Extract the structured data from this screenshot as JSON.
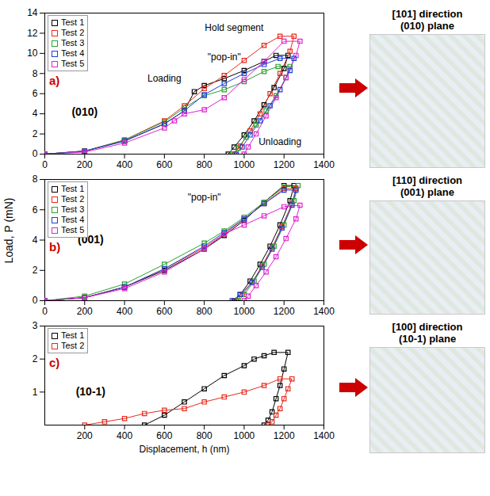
{
  "figure": {
    "y_label": "Load, P (mN)"
  },
  "chart_data": [
    {
      "type": "line",
      "panel": "a)",
      "side_caption": [
        "[101] direction",
        "(010) plane"
      ],
      "xlim": [
        0,
        1400
      ],
      "xticks": [
        0,
        200,
        400,
        600,
        800,
        1000,
        1200,
        1400
      ],
      "ylim": [
        0,
        14
      ],
      "yticks": [
        0,
        2,
        4,
        6,
        8,
        10,
        12,
        14
      ],
      "grid": false,
      "legend": "upper left",
      "marker": "square",
      "plane_label": {
        "text": "(010)",
        "x": 200,
        "y": 4.2
      },
      "annotations": [
        {
          "text": "Hold segment",
          "x": 950,
          "y": 12.5
        },
        {
          "text": "\"pop-in\"",
          "x": 900,
          "y": 9.6
        },
        {
          "text": "Loading",
          "x": 600,
          "y": 7.5
        },
        {
          "text": "Unloading",
          "x": 1180,
          "y": 1.2
        }
      ],
      "series": [
        {
          "name": "Test 1",
          "color": "#000000",
          "x": [
            0,
            200,
            400,
            600,
            700,
            750,
            800,
            900,
            1000,
            1100,
            1160,
            1220,
            1200,
            1150,
            1100,
            1050,
            1000,
            950,
            920
          ],
          "values": [
            0,
            0.3,
            1.3,
            3.0,
            4.3,
            6.2,
            6.8,
            7.5,
            8.3,
            9.2,
            9.8,
            9.8,
            8.5,
            6.6,
            4.9,
            3.3,
            1.9,
            0.7,
            0
          ]
        },
        {
          "name": "Test 2",
          "color": "#e8291c",
          "x": [
            0,
            200,
            400,
            600,
            700,
            800,
            900,
            1000,
            1100,
            1180,
            1250,
            1230,
            1180,
            1130,
            1080,
            1030,
            980,
            950
          ],
          "values": [
            0,
            0.3,
            1.4,
            3.3,
            4.8,
            6.5,
            7.8,
            9.3,
            10.8,
            11.7,
            11.7,
            10.2,
            8.0,
            6.0,
            4.0,
            2.3,
            0.8,
            0
          ]
        },
        {
          "name": "Test 3",
          "color": "#2ca02c",
          "x": [
            0,
            200,
            400,
            600,
            700,
            800,
            900,
            1000,
            1100,
            1170,
            1230,
            1210,
            1160,
            1110,
            1060,
            1010,
            970,
            940
          ],
          "values": [
            0,
            0.3,
            1.4,
            3.2,
            4.6,
            5.8,
            6.4,
            7.2,
            8.2,
            8.7,
            8.7,
            7.6,
            5.8,
            4.3,
            2.9,
            1.7,
            0.6,
            0
          ]
        },
        {
          "name": "Test 4",
          "color": "#1f3fd6",
          "x": [
            0,
            200,
            400,
            600,
            700,
            800,
            900,
            1000,
            1100,
            1180,
            1250,
            1230,
            1180,
            1130,
            1080,
            1030,
            990,
            960
          ],
          "values": [
            0,
            0.3,
            1.3,
            3.0,
            4.3,
            5.9,
            7.0,
            8.0,
            8.9,
            9.5,
            9.5,
            8.3,
            6.4,
            4.8,
            3.3,
            1.9,
            0.7,
            0
          ]
        },
        {
          "name": "Test 5",
          "color": "#e020d0",
          "x": [
            0,
            200,
            400,
            600,
            650,
            700,
            800,
            900,
            1000,
            1100,
            1200,
            1280,
            1260,
            1210,
            1160,
            1110,
            1060,
            1020,
            1000
          ],
          "values": [
            0,
            0.2,
            1.1,
            2.6,
            3.3,
            4.0,
            4.4,
            5.6,
            7.4,
            9.2,
            11.2,
            11.2,
            9.8,
            7.6,
            5.6,
            3.8,
            2.0,
            0.7,
            0
          ]
        }
      ]
    },
    {
      "type": "line",
      "panel": "b)",
      "side_caption": [
        "[110] direction",
        "(001) plane"
      ],
      "xlim": [
        0,
        1400
      ],
      "xticks": [
        0,
        200,
        400,
        600,
        800,
        1000,
        1200,
        1400
      ],
      "ylim": [
        0,
        8
      ],
      "yticks": [
        0,
        2,
        4,
        6,
        8
      ],
      "grid": false,
      "legend": "upper left",
      "marker": "square",
      "plane_label": {
        "text": "(001)",
        "x": 230,
        "y": 4.0
      },
      "annotations": [
        {
          "text": "\"pop-in\"",
          "x": 800,
          "y": 6.8
        }
      ],
      "series": [
        {
          "name": "Test 1",
          "color": "#000000",
          "x": [
            0,
            200,
            400,
            600,
            800,
            900,
            1000,
            1100,
            1200,
            1250,
            1230,
            1180,
            1130,
            1080,
            1030,
            980,
            950
          ],
          "values": [
            0,
            0.2,
            0.9,
            2.0,
            3.4,
            4.3,
            5.3,
            6.5,
            7.6,
            7.6,
            6.6,
            5.0,
            3.6,
            2.4,
            1.3,
            0.4,
            0
          ]
        },
        {
          "name": "Test 2",
          "color": "#e8291c",
          "x": [
            0,
            200,
            400,
            600,
            800,
            900,
            1000,
            1100,
            1200,
            1260,
            1240,
            1190,
            1140,
            1090,
            1040,
            990,
            960
          ],
          "values": [
            0,
            0.2,
            0.9,
            2.1,
            3.5,
            4.4,
            5.4,
            6.4,
            7.4,
            7.4,
            6.4,
            4.9,
            3.5,
            2.3,
            1.2,
            0.4,
            0
          ]
        },
        {
          "name": "Test 3",
          "color": "#2ca02c",
          "x": [
            0,
            200,
            400,
            600,
            800,
            900,
            1000,
            1100,
            1200,
            1270,
            1250,
            1200,
            1150,
            1100,
            1050,
            1000,
            970
          ],
          "values": [
            0,
            0.3,
            1.1,
            2.4,
            3.8,
            4.6,
            5.5,
            6.5,
            7.5,
            7.6,
            6.6,
            5.0,
            3.6,
            2.4,
            1.3,
            0.4,
            0
          ]
        },
        {
          "name": "Test 4",
          "color": "#1f3fd6",
          "x": [
            0,
            200,
            400,
            600,
            800,
            900,
            1000,
            1100,
            1200,
            1260,
            1240,
            1190,
            1140,
            1090,
            1040,
            980,
            940
          ],
          "values": [
            0,
            0.2,
            0.9,
            2.1,
            3.6,
            4.5,
            5.4,
            6.4,
            7.3,
            7.3,
            6.3,
            4.8,
            3.4,
            2.2,
            1.2,
            0.4,
            0
          ]
        },
        {
          "name": "Test 5",
          "color": "#e020d0",
          "x": [
            0,
            200,
            400,
            600,
            800,
            900,
            1000,
            1100,
            1200,
            1280,
            1260,
            1210,
            1160,
            1110,
            1060,
            1020,
            1000
          ],
          "values": [
            0,
            0.2,
            0.8,
            1.9,
            3.4,
            4.4,
            5.0,
            5.6,
            6.2,
            6.3,
            5.4,
            4.1,
            2.9,
            1.9,
            1.0,
            0.3,
            0
          ]
        }
      ]
    },
    {
      "type": "line",
      "panel": "c)",
      "side_caption": [
        "[100] direction",
        "(10-1) plane"
      ],
      "x_label": "Displacement, h (nm)",
      "xlim": [
        0,
        1400
      ],
      "xticks": [
        200,
        400,
        600,
        800,
        1000,
        1200,
        1400
      ],
      "ylim": [
        0,
        3
      ],
      "yticks": [
        1,
        2,
        3
      ],
      "grid": false,
      "legend": "upper left",
      "marker": "square",
      "plane_label": {
        "text": "(10-1)",
        "x": 230,
        "y": 1.0
      },
      "annotations": [],
      "series": [
        {
          "name": "Test 1",
          "color": "#000000",
          "x": [
            500,
            600,
            700,
            800,
            900,
            1000,
            1050,
            1100,
            1150,
            1220,
            1200,
            1180,
            1160,
            1140,
            1120,
            1100
          ],
          "values": [
            0,
            0.3,
            0.7,
            1.1,
            1.5,
            1.8,
            2.0,
            2.1,
            2.2,
            2.2,
            1.7,
            1.2,
            0.8,
            0.4,
            0.15,
            0
          ]
        },
        {
          "name": "Test 2",
          "color": "#e8291c",
          "x": [
            200,
            300,
            400,
            500,
            600,
            700,
            800,
            900,
            1000,
            1100,
            1180,
            1240,
            1220,
            1200,
            1180,
            1160,
            1140,
            1120
          ],
          "values": [
            0,
            0.1,
            0.2,
            0.35,
            0.45,
            0.5,
            0.7,
            0.85,
            1.0,
            1.2,
            1.4,
            1.4,
            1.1,
            0.8,
            0.5,
            0.3,
            0.1,
            0
          ]
        }
      ]
    }
  ]
}
